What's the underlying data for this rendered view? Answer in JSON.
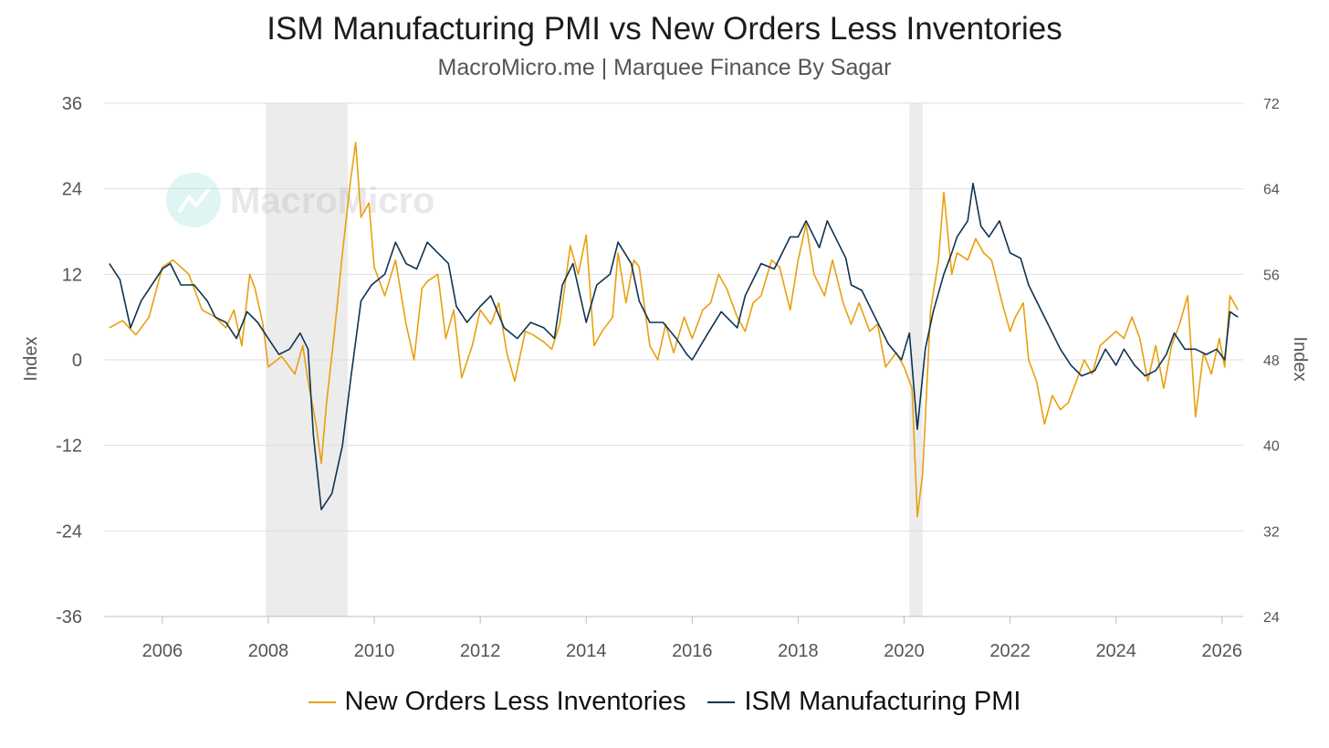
{
  "colors": {
    "new_orders": "#e8a00e",
    "ism_pmi": "#0f3352",
    "recession": "#ececec",
    "grid": "#dedede"
  },
  "chart_data": {
    "type": "line",
    "title": "ISM Manufacturing PMI vs New Orders Less Inventories",
    "subtitle": "MacroMicro.me | Marquee Finance By Sagar",
    "watermark": "MacroMicro",
    "ylabel_left": "Index",
    "ylabel_right": "Index",
    "x_range": [
      2004.9,
      2026.4
    ],
    "x_ticks": [
      "2006",
      "2008",
      "2010",
      "2012",
      "2014",
      "2016",
      "2018",
      "2020",
      "2022",
      "2024",
      "2026"
    ],
    "y_left": {
      "range": [
        -36,
        36
      ],
      "ticks": [
        "36",
        "24",
        "12",
        "0",
        "-12",
        "-24",
        "-36"
      ]
    },
    "y_right": {
      "range": [
        24,
        72
      ],
      "ticks": [
        "72",
        "64",
        "56",
        "48",
        "40",
        "32",
        "24"
      ]
    },
    "recessions": [
      [
        2007.95,
        2009.5
      ],
      [
        2020.1,
        2020.35
      ]
    ],
    "series": [
      {
        "name": "New Orders Less Inventories",
        "axis": "left",
        "points": [
          [
            2005.0,
            4.5
          ],
          [
            2005.25,
            5.5
          ],
          [
            2005.5,
            3.5
          ],
          [
            2005.75,
            6.0
          ],
          [
            2006.0,
            13.0
          ],
          [
            2006.2,
            14.0
          ],
          [
            2006.5,
            12.0
          ],
          [
            2006.75,
            7.0
          ],
          [
            2007.0,
            6.0
          ],
          [
            2007.2,
            4.5
          ],
          [
            2007.35,
            7.0
          ],
          [
            2007.5,
            2.0
          ],
          [
            2007.65,
            12.0
          ],
          [
            2007.75,
            10.0
          ],
          [
            2007.9,
            5.0
          ],
          [
            2008.0,
            -1.0
          ],
          [
            2008.25,
            0.5
          ],
          [
            2008.5,
            -2.0
          ],
          [
            2008.65,
            2.0
          ],
          [
            2008.75,
            -3.0
          ],
          [
            2008.9,
            -9.0
          ],
          [
            2009.0,
            -14.5
          ],
          [
            2009.1,
            -6.0
          ],
          [
            2009.25,
            4.0
          ],
          [
            2009.4,
            15.0
          ],
          [
            2009.55,
            25.0
          ],
          [
            2009.65,
            30.5
          ],
          [
            2009.75,
            20.0
          ],
          [
            2009.9,
            22.0
          ],
          [
            2010.0,
            13.0
          ],
          [
            2010.2,
            9.0
          ],
          [
            2010.4,
            14.0
          ],
          [
            2010.6,
            5.0
          ],
          [
            2010.75,
            0.0
          ],
          [
            2010.9,
            10.0
          ],
          [
            2011.0,
            11.0
          ],
          [
            2011.2,
            12.0
          ],
          [
            2011.35,
            3.0
          ],
          [
            2011.5,
            7.0
          ],
          [
            2011.65,
            -2.5
          ],
          [
            2011.85,
            2.0
          ],
          [
            2012.0,
            7.0
          ],
          [
            2012.2,
            5.0
          ],
          [
            2012.35,
            8.0
          ],
          [
            2012.5,
            1.0
          ],
          [
            2012.65,
            -3.0
          ],
          [
            2012.85,
            4.0
          ],
          [
            2013.0,
            3.5
          ],
          [
            2013.2,
            2.5
          ],
          [
            2013.35,
            1.5
          ],
          [
            2013.5,
            5.0
          ],
          [
            2013.7,
            16.0
          ],
          [
            2013.85,
            12.0
          ],
          [
            2014.0,
            17.5
          ],
          [
            2014.15,
            2.0
          ],
          [
            2014.3,
            4.0
          ],
          [
            2014.5,
            6.0
          ],
          [
            2014.6,
            15.0
          ],
          [
            2014.75,
            8.0
          ],
          [
            2014.9,
            14.0
          ],
          [
            2015.0,
            13.0
          ],
          [
            2015.2,
            2.0
          ],
          [
            2015.35,
            0.0
          ],
          [
            2015.5,
            5.0
          ],
          [
            2015.65,
            1.0
          ],
          [
            2015.85,
            6.0
          ],
          [
            2016.0,
            3.0
          ],
          [
            2016.2,
            7.0
          ],
          [
            2016.35,
            8.0
          ],
          [
            2016.5,
            12.0
          ],
          [
            2016.65,
            10.0
          ],
          [
            2016.85,
            6.0
          ],
          [
            2017.0,
            4.0
          ],
          [
            2017.15,
            8.0
          ],
          [
            2017.3,
            9.0
          ],
          [
            2017.5,
            14.0
          ],
          [
            2017.65,
            13.0
          ],
          [
            2017.85,
            7.0
          ],
          [
            2018.0,
            14.0
          ],
          [
            2018.15,
            19.0
          ],
          [
            2018.3,
            12.0
          ],
          [
            2018.5,
            9.0
          ],
          [
            2018.65,
            14.0
          ],
          [
            2018.85,
            8.0
          ],
          [
            2019.0,
            5.0
          ],
          [
            2019.15,
            8.0
          ],
          [
            2019.35,
            4.0
          ],
          [
            2019.5,
            5.0
          ],
          [
            2019.65,
            -1.0
          ],
          [
            2019.85,
            1.0
          ],
          [
            2020.0,
            -1.0
          ],
          [
            2020.15,
            -4.0
          ],
          [
            2020.25,
            -22.0
          ],
          [
            2020.35,
            -16.0
          ],
          [
            2020.5,
            7.0
          ],
          [
            2020.65,
            14.0
          ],
          [
            2020.75,
            23.5
          ],
          [
            2020.9,
            12.0
          ],
          [
            2021.0,
            15.0
          ],
          [
            2021.2,
            14.0
          ],
          [
            2021.35,
            17.0
          ],
          [
            2021.5,
            15.0
          ],
          [
            2021.65,
            14.0
          ],
          [
            2021.85,
            8.0
          ],
          [
            2022.0,
            4.0
          ],
          [
            2022.1,
            6.0
          ],
          [
            2022.25,
            8.0
          ],
          [
            2022.35,
            0.0
          ],
          [
            2022.5,
            -3.0
          ],
          [
            2022.65,
            -9.0
          ],
          [
            2022.8,
            -5.0
          ],
          [
            2022.95,
            -7.0
          ],
          [
            2023.1,
            -6.0
          ],
          [
            2023.25,
            -3.0
          ],
          [
            2023.4,
            0.0
          ],
          [
            2023.55,
            -2.0
          ],
          [
            2023.7,
            2.0
          ],
          [
            2023.85,
            3.0
          ],
          [
            2024.0,
            4.0
          ],
          [
            2024.15,
            3.0
          ],
          [
            2024.3,
            6.0
          ],
          [
            2024.45,
            3.0
          ],
          [
            2024.6,
            -3.0
          ],
          [
            2024.75,
            2.0
          ],
          [
            2024.9,
            -4.0
          ],
          [
            2025.05,
            2.0
          ],
          [
            2025.2,
            5.0
          ],
          [
            2025.35,
            9.0
          ],
          [
            2025.5,
            -8.0
          ],
          [
            2025.65,
            1.0
          ],
          [
            2025.8,
            -2.0
          ],
          [
            2025.95,
            3.0
          ],
          [
            2026.05,
            -1.0
          ],
          [
            2026.15,
            9.0
          ],
          [
            2026.3,
            7.0
          ]
        ]
      },
      {
        "name": "ISM Manufacturing PMI",
        "axis": "right",
        "points": [
          [
            2005.0,
            57.0
          ],
          [
            2005.2,
            55.5
          ],
          [
            2005.4,
            51.0
          ],
          [
            2005.6,
            53.5
          ],
          [
            2006.0,
            56.5
          ],
          [
            2006.15,
            57.0
          ],
          [
            2006.35,
            55.0
          ],
          [
            2006.6,
            55.0
          ],
          [
            2006.85,
            53.5
          ],
          [
            2007.0,
            52.0
          ],
          [
            2007.2,
            51.5
          ],
          [
            2007.4,
            50.0
          ],
          [
            2007.6,
            52.5
          ],
          [
            2007.8,
            51.5
          ],
          [
            2008.0,
            50.0
          ],
          [
            2008.2,
            48.5
          ],
          [
            2008.4,
            49.0
          ],
          [
            2008.6,
            50.5
          ],
          [
            2008.75,
            49.0
          ],
          [
            2008.85,
            41.0
          ],
          [
            2009.0,
            34.0
          ],
          [
            2009.2,
            35.5
          ],
          [
            2009.4,
            40.0
          ],
          [
            2009.55,
            46.0
          ],
          [
            2009.75,
            53.5
          ],
          [
            2009.95,
            55.0
          ],
          [
            2010.2,
            56.0
          ],
          [
            2010.4,
            59.0
          ],
          [
            2010.6,
            57.0
          ],
          [
            2010.8,
            56.5
          ],
          [
            2011.0,
            59.0
          ],
          [
            2011.2,
            58.0
          ],
          [
            2011.4,
            57.0
          ],
          [
            2011.55,
            53.0
          ],
          [
            2011.75,
            51.5
          ],
          [
            2012.0,
            53.0
          ],
          [
            2012.2,
            54.0
          ],
          [
            2012.45,
            51.0
          ],
          [
            2012.7,
            50.0
          ],
          [
            2012.95,
            51.5
          ],
          [
            2013.2,
            51.0
          ],
          [
            2013.4,
            50.0
          ],
          [
            2013.55,
            55.0
          ],
          [
            2013.75,
            57.0
          ],
          [
            2014.0,
            51.5
          ],
          [
            2014.2,
            55.0
          ],
          [
            2014.45,
            56.0
          ],
          [
            2014.6,
            59.0
          ],
          [
            2014.85,
            57.0
          ],
          [
            2015.0,
            53.5
          ],
          [
            2015.2,
            51.5
          ],
          [
            2015.45,
            51.5
          ],
          [
            2015.7,
            50.0
          ],
          [
            2015.9,
            48.5
          ],
          [
            2016.0,
            48.0
          ],
          [
            2016.3,
            50.5
          ],
          [
            2016.55,
            52.5
          ],
          [
            2016.85,
            51.0
          ],
          [
            2017.0,
            54.0
          ],
          [
            2017.3,
            57.0
          ],
          [
            2017.55,
            56.5
          ],
          [
            2017.7,
            58.0
          ],
          [
            2017.85,
            59.5
          ],
          [
            2018.0,
            59.5
          ],
          [
            2018.15,
            61.0
          ],
          [
            2018.4,
            58.5
          ],
          [
            2018.55,
            61.0
          ],
          [
            2018.75,
            59.0
          ],
          [
            2018.9,
            57.5
          ],
          [
            2019.0,
            55.0
          ],
          [
            2019.2,
            54.5
          ],
          [
            2019.45,
            52.0
          ],
          [
            2019.7,
            49.5
          ],
          [
            2019.95,
            48.0
          ],
          [
            2020.1,
            50.5
          ],
          [
            2020.25,
            41.5
          ],
          [
            2020.4,
            49.0
          ],
          [
            2020.55,
            52.5
          ],
          [
            2020.75,
            56.0
          ],
          [
            2020.9,
            58.0
          ],
          [
            2021.0,
            59.5
          ],
          [
            2021.2,
            61.0
          ],
          [
            2021.3,
            64.5
          ],
          [
            2021.45,
            60.5
          ],
          [
            2021.6,
            59.5
          ],
          [
            2021.8,
            61.0
          ],
          [
            2022.0,
            58.0
          ],
          [
            2022.2,
            57.5
          ],
          [
            2022.35,
            55.0
          ],
          [
            2022.55,
            53.0
          ],
          [
            2022.75,
            51.0
          ],
          [
            2022.95,
            49.0
          ],
          [
            2023.15,
            47.5
          ],
          [
            2023.35,
            46.5
          ],
          [
            2023.6,
            47.0
          ],
          [
            2023.8,
            49.0
          ],
          [
            2024.0,
            47.5
          ],
          [
            2024.15,
            49.0
          ],
          [
            2024.35,
            47.5
          ],
          [
            2024.55,
            46.5
          ],
          [
            2024.75,
            47.0
          ],
          [
            2024.95,
            48.5
          ],
          [
            2025.1,
            50.5
          ],
          [
            2025.3,
            49.0
          ],
          [
            2025.5,
            49.0
          ],
          [
            2025.7,
            48.5
          ],
          [
            2025.9,
            49.0
          ],
          [
            2026.05,
            48.0
          ],
          [
            2026.15,
            52.5
          ],
          [
            2026.3,
            52.0
          ]
        ]
      }
    ],
    "legend": [
      "New Orders Less Inventories",
      "ISM Manufacturing PMI"
    ],
    "legend_position": "bottom-center"
  }
}
